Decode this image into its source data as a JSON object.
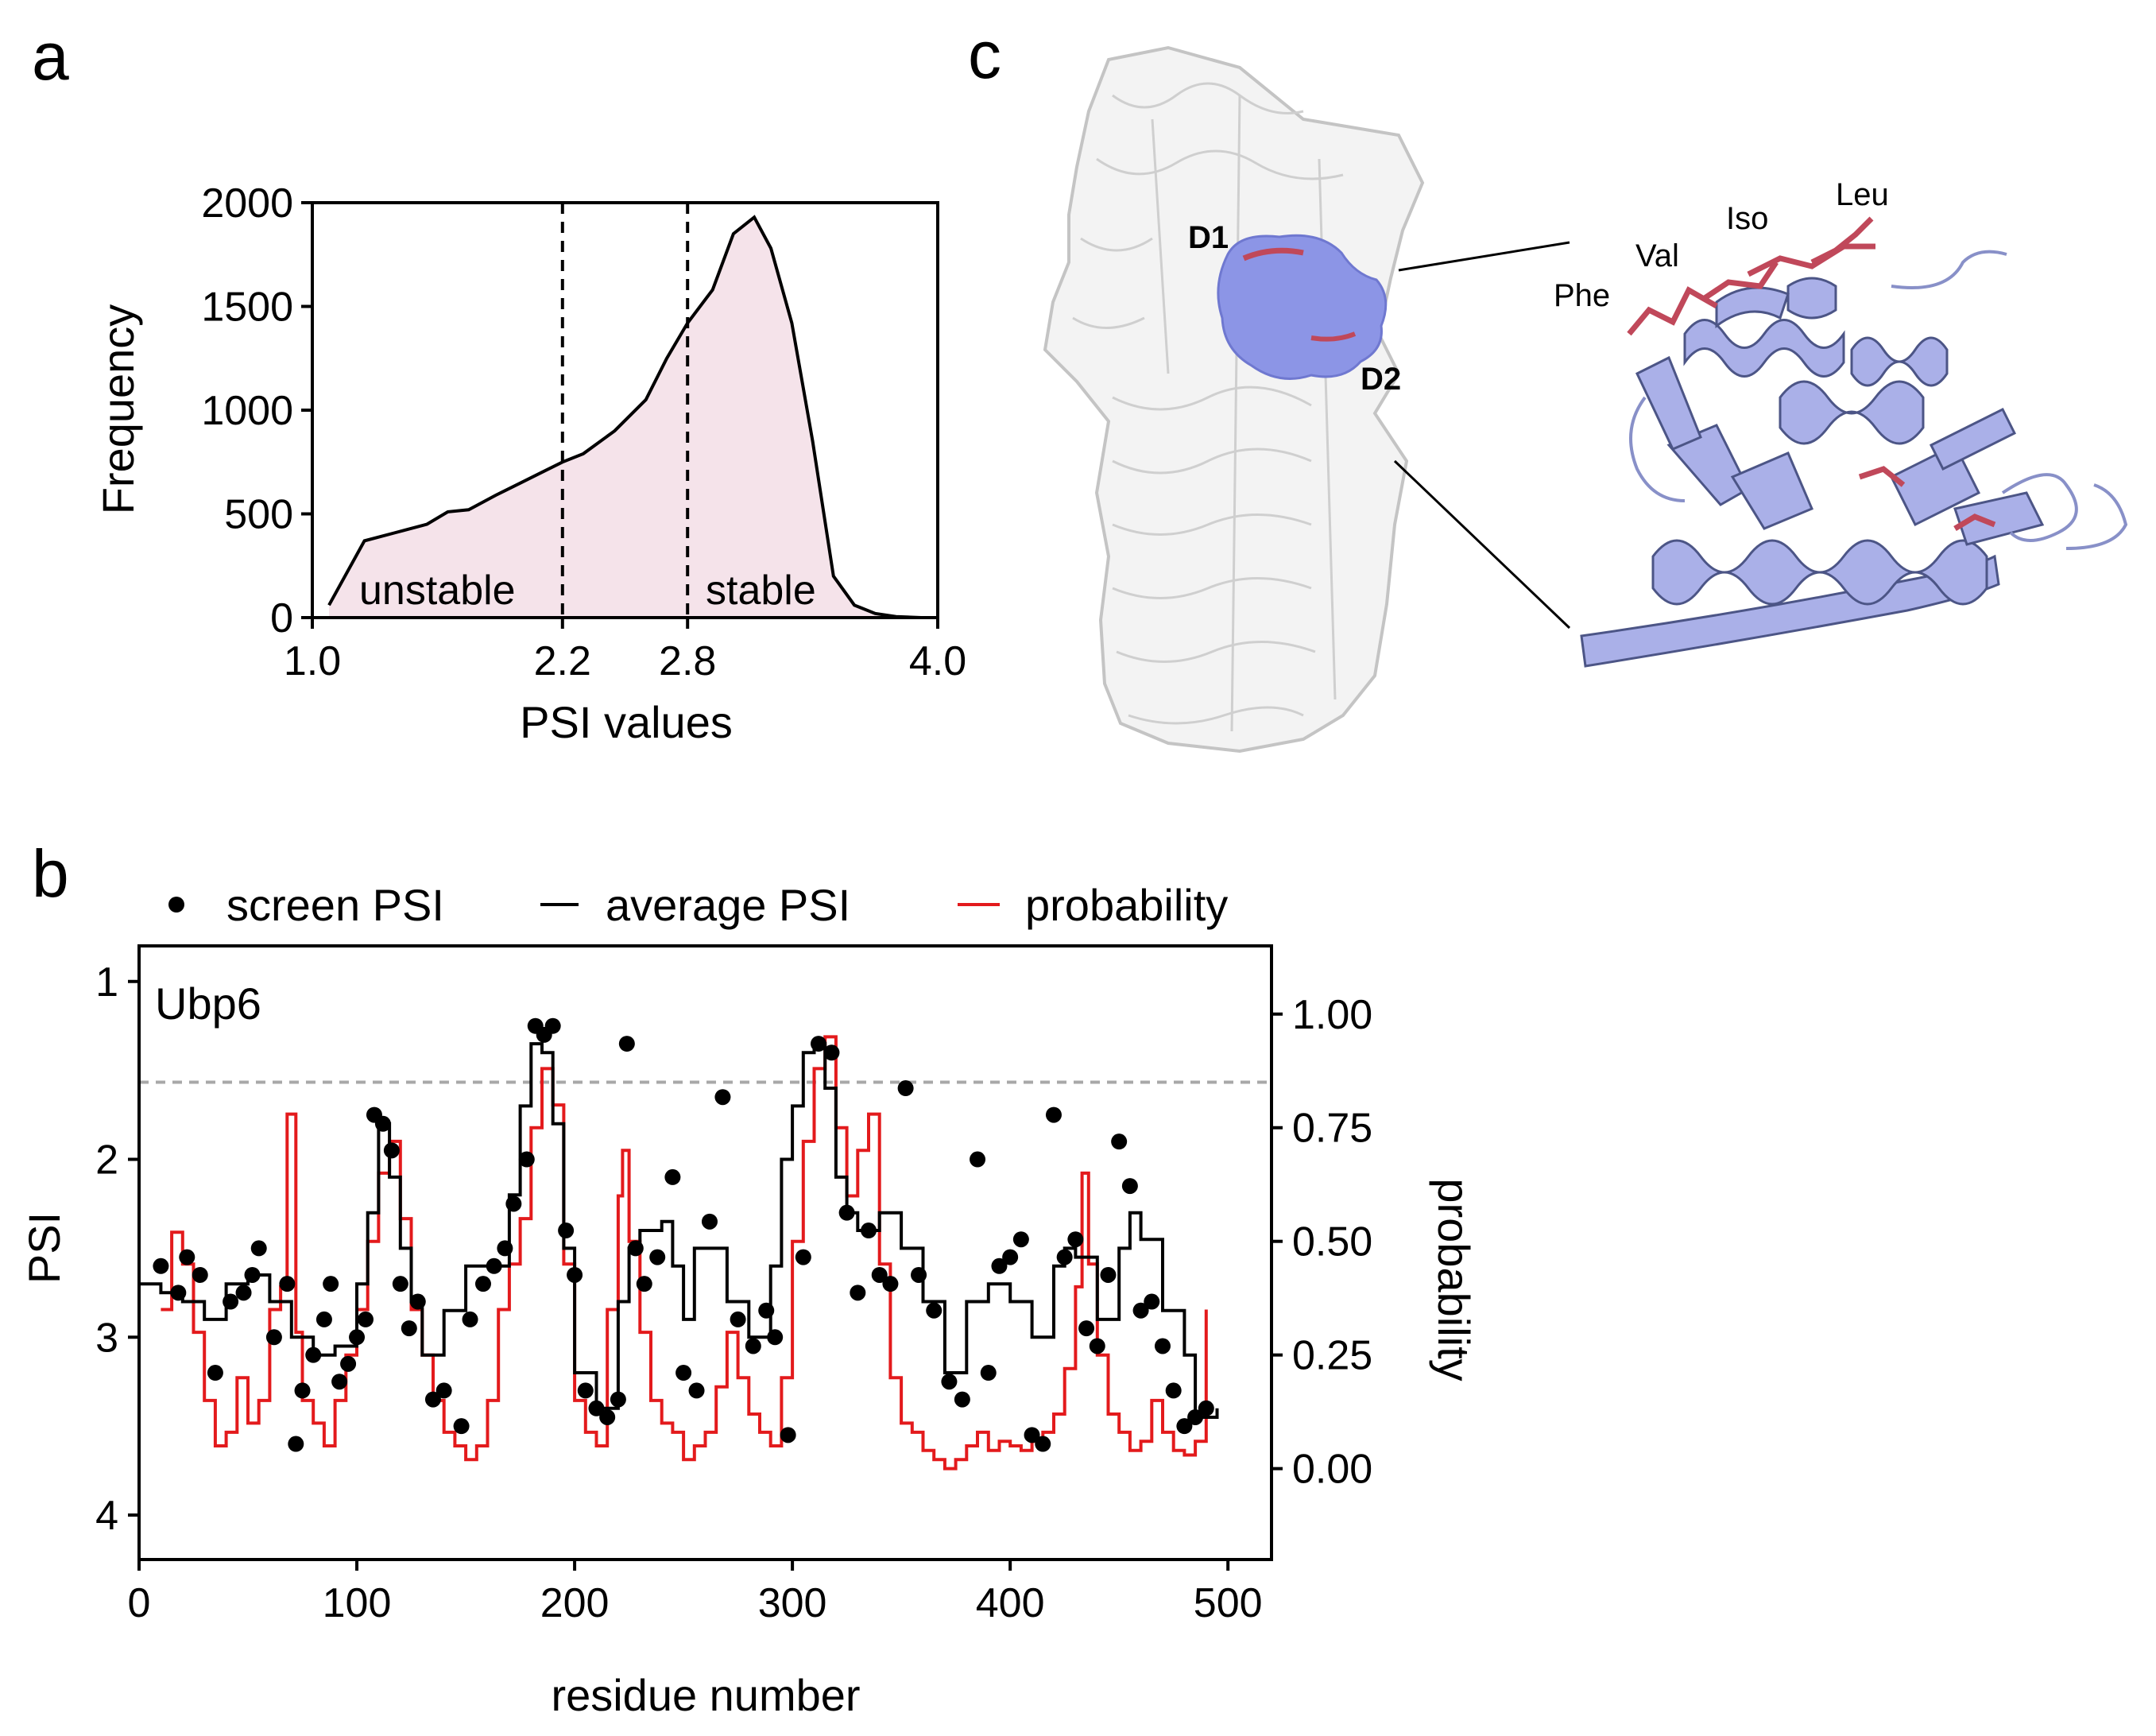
{
  "panels": {
    "a": "a",
    "b": "b",
    "c": "c"
  },
  "chart_data": [
    {
      "panel": "a",
      "type": "area",
      "xlabel": "PSI values",
      "ylabel": "Frequency",
      "xlim": [
        1.0,
        4.0
      ],
      "ylim": [
        0,
        2000
      ],
      "xtick_labels": [
        "1.0",
        "2.2",
        "2.8",
        "4.0"
      ],
      "xticks": [
        1.0,
        2.2,
        2.8,
        4.0
      ],
      "ytick_labels": [
        "0",
        "500",
        "1000",
        "1500",
        "2000"
      ],
      "yticks": [
        0,
        500,
        1000,
        1500,
        2000
      ],
      "x": [
        1.08,
        1.25,
        1.4,
        1.55,
        1.65,
        1.75,
        1.88,
        2.0,
        2.1,
        2.2,
        2.3,
        2.45,
        2.6,
        2.7,
        2.8,
        2.92,
        3.02,
        3.12,
        3.2,
        3.3,
        3.4,
        3.5,
        3.6,
        3.7,
        3.8,
        3.92
      ],
      "values": [
        60,
        370,
        410,
        450,
        510,
        520,
        590,
        650,
        700,
        750,
        790,
        900,
        1050,
        1250,
        1420,
        1580,
        1850,
        1930,
        1780,
        1420,
        850,
        200,
        60,
        20,
        5,
        0
      ],
      "thresholds": [
        2.2,
        2.8
      ],
      "region_labels": {
        "unstable": "unstable",
        "stable": "stable"
      },
      "fill_color": "#f5e3ea"
    },
    {
      "panel": "b",
      "type": "line",
      "title": "Ubp6",
      "xlabel": "residue number",
      "ylabel": "PSI",
      "y2label": "probability",
      "xlim": [
        0,
        520
      ],
      "ylim_inverted": [
        0.8,
        4.25
      ],
      "y2lim": [
        -0.2,
        1.15
      ],
      "xticks": [
        0,
        100,
        200,
        300,
        400,
        500
      ],
      "xtick_labels": [
        "0",
        "100",
        "200",
        "300",
        "400",
        "500"
      ],
      "yticks": [
        1,
        2,
        3,
        4
      ],
      "ytick_labels": [
        "1",
        "2",
        "3",
        "4"
      ],
      "y2ticks": [
        0.0,
        0.25,
        0.5,
        0.75,
        1.0
      ],
      "y2tick_labels": [
        "0.00",
        "0.25",
        "0.50",
        "0.75",
        "1.00"
      ],
      "threshold_probability": 0.85,
      "legend": [
        {
          "label": "screen PSI",
          "style": "dot",
          "color": "#000000"
        },
        {
          "label": "average PSI",
          "style": "line",
          "color": "#000000"
        },
        {
          "label": "probability",
          "style": "line",
          "color": "#e31a1c"
        }
      ],
      "series": [
        {
          "name": "screen PSI",
          "kind": "scatter",
          "x": [
            10,
            18,
            22,
            28,
            35,
            42,
            48,
            52,
            55,
            62,
            68,
            72,
            75,
            80,
            85,
            88,
            92,
            96,
            100,
            104,
            108,
            112,
            116,
            120,
            124,
            128,
            135,
            140,
            148,
            152,
            158,
            163,
            168,
            172,
            178,
            182,
            186,
            190,
            196,
            200,
            205,
            210,
            215,
            220,
            224,
            228,
            232,
            238,
            245,
            250,
            256,
            262,
            268,
            275,
            282,
            288,
            292,
            298,
            305,
            312,
            318,
            325,
            330,
            335,
            340,
            345,
            352,
            358,
            365,
            372,
            378,
            385,
            390,
            395,
            400,
            405,
            410,
            415,
            420,
            425,
            430,
            435,
            440,
            445,
            450,
            455,
            460,
            465,
            470,
            475,
            480,
            485,
            490
          ],
          "values": [
            2.6,
            2.75,
            2.55,
            2.65,
            3.2,
            2.8,
            2.75,
            2.65,
            2.5,
            3.0,
            2.7,
            3.6,
            3.3,
            3.1,
            2.9,
            2.7,
            3.25,
            3.15,
            3.0,
            2.9,
            1.75,
            1.8,
            1.95,
            2.7,
            2.95,
            2.8,
            3.35,
            3.3,
            3.5,
            2.9,
            2.7,
            2.6,
            2.5,
            2.25,
            2.0,
            1.25,
            1.3,
            1.25,
            2.4,
            2.65,
            3.3,
            3.4,
            3.45,
            3.35,
            1.35,
            2.5,
            2.7,
            2.55,
            2.1,
            3.2,
            3.3,
            2.35,
            1.65,
            2.9,
            3.05,
            2.85,
            3.0,
            3.55,
            2.55,
            1.35,
            1.4,
            2.3,
            2.75,
            2.4,
            2.65,
            2.7,
            1.6,
            2.65,
            2.85,
            3.25,
            3.35,
            2.0,
            3.2,
            2.6,
            2.55,
            2.45,
            3.55,
            3.6,
            1.75,
            2.55,
            2.45,
            2.95,
            3.05,
            2.65,
            1.9,
            2.15,
            2.85,
            2.8,
            3.05,
            3.3,
            3.5,
            3.45,
            3.4
          ],
          "color": "#000000"
        },
        {
          "name": "average PSI",
          "kind": "step",
          "x": [
            0,
            10,
            20,
            30,
            40,
            50,
            60,
            70,
            80,
            90,
            100,
            105,
            110,
            115,
            120,
            125,
            130,
            140,
            150,
            160,
            170,
            175,
            180,
            185,
            190,
            195,
            200,
            210,
            220,
            225,
            230,
            240,
            245,
            250,
            255,
            260,
            270,
            280,
            290,
            295,
            300,
            305,
            310,
            315,
            320,
            325,
            330,
            340,
            350,
            360,
            370,
            380,
            390,
            400,
            410,
            420,
            425,
            430,
            440,
            450,
            455,
            460,
            470,
            480,
            485,
            495
          ],
          "values": [
            2.7,
            2.75,
            2.8,
            2.9,
            2.7,
            2.65,
            2.8,
            3.0,
            3.1,
            3.05,
            2.7,
            2.3,
            1.8,
            2.1,
            2.5,
            2.8,
            3.1,
            2.85,
            2.6,
            2.6,
            2.2,
            1.7,
            1.35,
            1.4,
            1.8,
            2.5,
            3.2,
            3.4,
            2.8,
            2.5,
            2.4,
            2.35,
            2.6,
            2.9,
            2.5,
            2.5,
            2.8,
            3.0,
            2.6,
            2.0,
            1.7,
            1.4,
            1.35,
            1.6,
            2.1,
            2.3,
            2.4,
            2.3,
            2.5,
            2.8,
            3.2,
            2.8,
            2.7,
            2.8,
            3.0,
            2.6,
            2.5,
            2.55,
            2.9,
            2.5,
            2.3,
            2.45,
            2.85,
            3.1,
            3.45,
            3.4
          ],
          "color": "#000000"
        },
        {
          "name": "probability",
          "kind": "step",
          "x": [
            10,
            15,
            20,
            25,
            30,
            35,
            40,
            45,
            50,
            55,
            60,
            65,
            68,
            72,
            75,
            80,
            85,
            90,
            95,
            100,
            105,
            110,
            115,
            120,
            125,
            130,
            135,
            140,
            145,
            150,
            155,
            160,
            165,
            170,
            175,
            180,
            185,
            190,
            195,
            200,
            205,
            210,
            215,
            220,
            222,
            225,
            230,
            235,
            240,
            245,
            250,
            255,
            260,
            265,
            270,
            275,
            280,
            285,
            290,
            295,
            300,
            305,
            310,
            315,
            320,
            325,
            330,
            335,
            340,
            345,
            350,
            355,
            360,
            365,
            370,
            375,
            380,
            385,
            390,
            395,
            400,
            405,
            410,
            415,
            420,
            425,
            430,
            433,
            436,
            440,
            445,
            450,
            455,
            460,
            465,
            470,
            475,
            480,
            485,
            490
          ],
          "values": [
            0.35,
            0.52,
            0.45,
            0.3,
            0.15,
            0.05,
            0.08,
            0.2,
            0.1,
            0.15,
            0.35,
            0.4,
            0.78,
            0.3,
            0.15,
            0.1,
            0.05,
            0.15,
            0.25,
            0.35,
            0.5,
            0.65,
            0.72,
            0.55,
            0.35,
            0.25,
            0.15,
            0.08,
            0.05,
            0.02,
            0.05,
            0.15,
            0.35,
            0.45,
            0.55,
            0.75,
            0.88,
            0.8,
            0.45,
            0.15,
            0.08,
            0.05,
            0.35,
            0.6,
            0.7,
            0.5,
            0.3,
            0.15,
            0.1,
            0.08,
            0.02,
            0.05,
            0.08,
            0.18,
            0.3,
            0.2,
            0.12,
            0.08,
            0.05,
            0.2,
            0.5,
            0.72,
            0.88,
            0.95,
            0.75,
            0.6,
            0.7,
            0.78,
            0.45,
            0.2,
            0.1,
            0.08,
            0.04,
            0.02,
            0.0,
            0.02,
            0.05,
            0.08,
            0.04,
            0.06,
            0.05,
            0.04,
            0.06,
            0.08,
            0.12,
            0.22,
            0.4,
            0.65,
            0.45,
            0.25,
            0.12,
            0.08,
            0.04,
            0.06,
            0.15,
            0.08,
            0.04,
            0.03,
            0.06,
            0.35
          ],
          "color": "#e31a1c"
        }
      ]
    }
  ],
  "structure_panel": {
    "domain_labels": [
      "D1",
      "D2"
    ],
    "residue_labels": [
      "Phe",
      "Val",
      "Iso",
      "Leu"
    ],
    "surface_color": "#8c95e6",
    "cartoon_color": "#aab0e8",
    "highlight_color": "#c0485a",
    "complex_color": "#d6d6d6"
  }
}
